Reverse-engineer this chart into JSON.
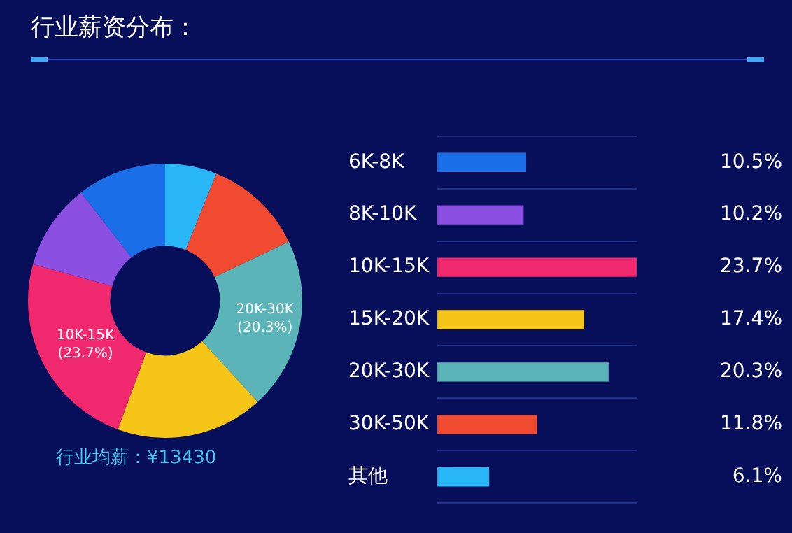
{
  "chart_data": [
    {
      "type": "donut",
      "title": "行业薪资分布：",
      "categories": [
        null,
        null,
        "20K-30K",
        null,
        "10K-15K",
        null,
        null
      ],
      "values": [
        6.1,
        11.8,
        20.3,
        17.4,
        23.7,
        10.2,
        10.5
      ],
      "colors": [
        "#29b6f6",
        "#f04a30",
        "#5ab4b8",
        "#f5c518",
        "#f0286e",
        "#8a4fe0",
        "#1a6fe8"
      ],
      "value_labels": [
        null,
        null,
        "(20.3%)",
        null,
        "(23.7%)",
        null,
        null
      ],
      "annotations": [
        "行业均薪：¥13430"
      ],
      "legend": false
    },
    {
      "type": "bar",
      "orientation": "horizontal",
      "categories": [
        "6K-8K",
        "8K-10K",
        "10K-15K",
        "15K-20K",
        "20K-30K",
        "30K-50K",
        "其他"
      ],
      "values": [
        10.5,
        10.2,
        23.7,
        17.4,
        20.3,
        11.8,
        6.1
      ],
      "colors": [
        "#1a6fe8",
        "#8a4fe0",
        "#f0286e",
        "#f5c518",
        "#5ab4b8",
        "#f04a30",
        "#29b6f6"
      ],
      "value_labels": [
        "10.5%",
        "10.2%",
        "23.7%",
        "17.4%",
        "20.3%",
        "11.8%",
        "6.1%"
      ],
      "legend": false,
      "grid": "y"
    }
  ]
}
